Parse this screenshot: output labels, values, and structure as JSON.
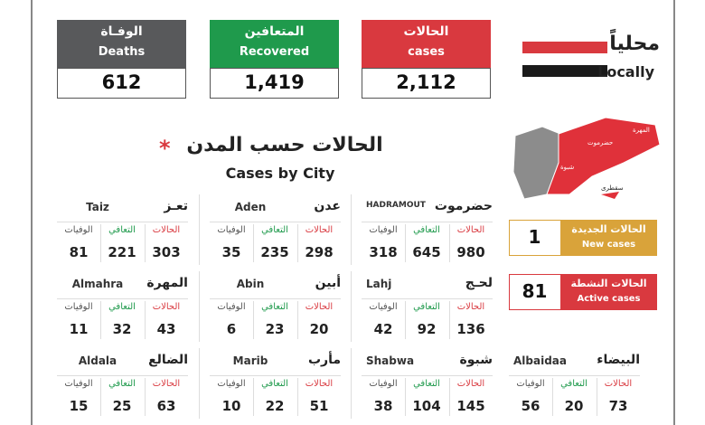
{
  "header": {
    "local_ar": "محلياً",
    "local_en": "Locally"
  },
  "stats": [
    {
      "ar": "الحالات",
      "en": "cases",
      "value": "2,112",
      "color": "#d9393f"
    },
    {
      "ar": "المتعافين",
      "en": "Recovered",
      "value": "1,419",
      "color": "#1f9a4c"
    },
    {
      "ar": "الوفـاة",
      "en": "Deaths",
      "value": "612",
      "color": "#58595b"
    }
  ],
  "cities_title": {
    "ar": "الحالات حسب المدن",
    "en": "Cases by City",
    "star": "*"
  },
  "map": {
    "labels": [
      "المهرة",
      "حضرموت",
      "شبوة",
      "سقطرى"
    ]
  },
  "boxes": [
    {
      "label_ar": "الحالات الجديدة",
      "label_en": "New cases",
      "value": "1",
      "color": "#d9a33a"
    },
    {
      "label_ar": "الحالات النشطة",
      "label_en": "Active cases",
      "value": "81",
      "color": "#d9393f"
    }
  ],
  "columns": {
    "cases": "الحالات",
    "recovered": "التعافي",
    "deaths": "الوفيات"
  },
  "cities": [
    {
      "ar": "حضرموت",
      "en": "HADRAMOUT",
      "cases": "980",
      "recovered": "645",
      "deaths": "318"
    },
    {
      "ar": "عدن",
      "en": "Aden",
      "cases": "298",
      "recovered": "235",
      "deaths": "35"
    },
    {
      "ar": "تعـز",
      "en": "Taiz",
      "cases": "303",
      "recovered": "221",
      "deaths": "81"
    },
    {
      "ar": "لحـج",
      "en": "Lahj",
      "cases": "136",
      "recovered": "92",
      "deaths": "42"
    },
    {
      "ar": "أبين",
      "en": "Abin",
      "cases": "20",
      "recovered": "23",
      "deaths": "6"
    },
    {
      "ar": "المهرة",
      "en": "Almahra",
      "cases": "43",
      "recovered": "32",
      "deaths": "11"
    },
    {
      "ar": "شبوة",
      "en": "Shabwa",
      "cases": "145",
      "recovered": "104",
      "deaths": "38"
    },
    {
      "ar": "مأرب",
      "en": "Marib",
      "cases": "51",
      "recovered": "22",
      "deaths": "10"
    },
    {
      "ar": "الضالع",
      "en": "Aldala",
      "cases": "63",
      "recovered": "25",
      "deaths": "15"
    },
    {
      "ar": "البيضاء",
      "en": "Albaidaa",
      "cases": "73",
      "recovered": "20",
      "deaths": "56"
    }
  ]
}
